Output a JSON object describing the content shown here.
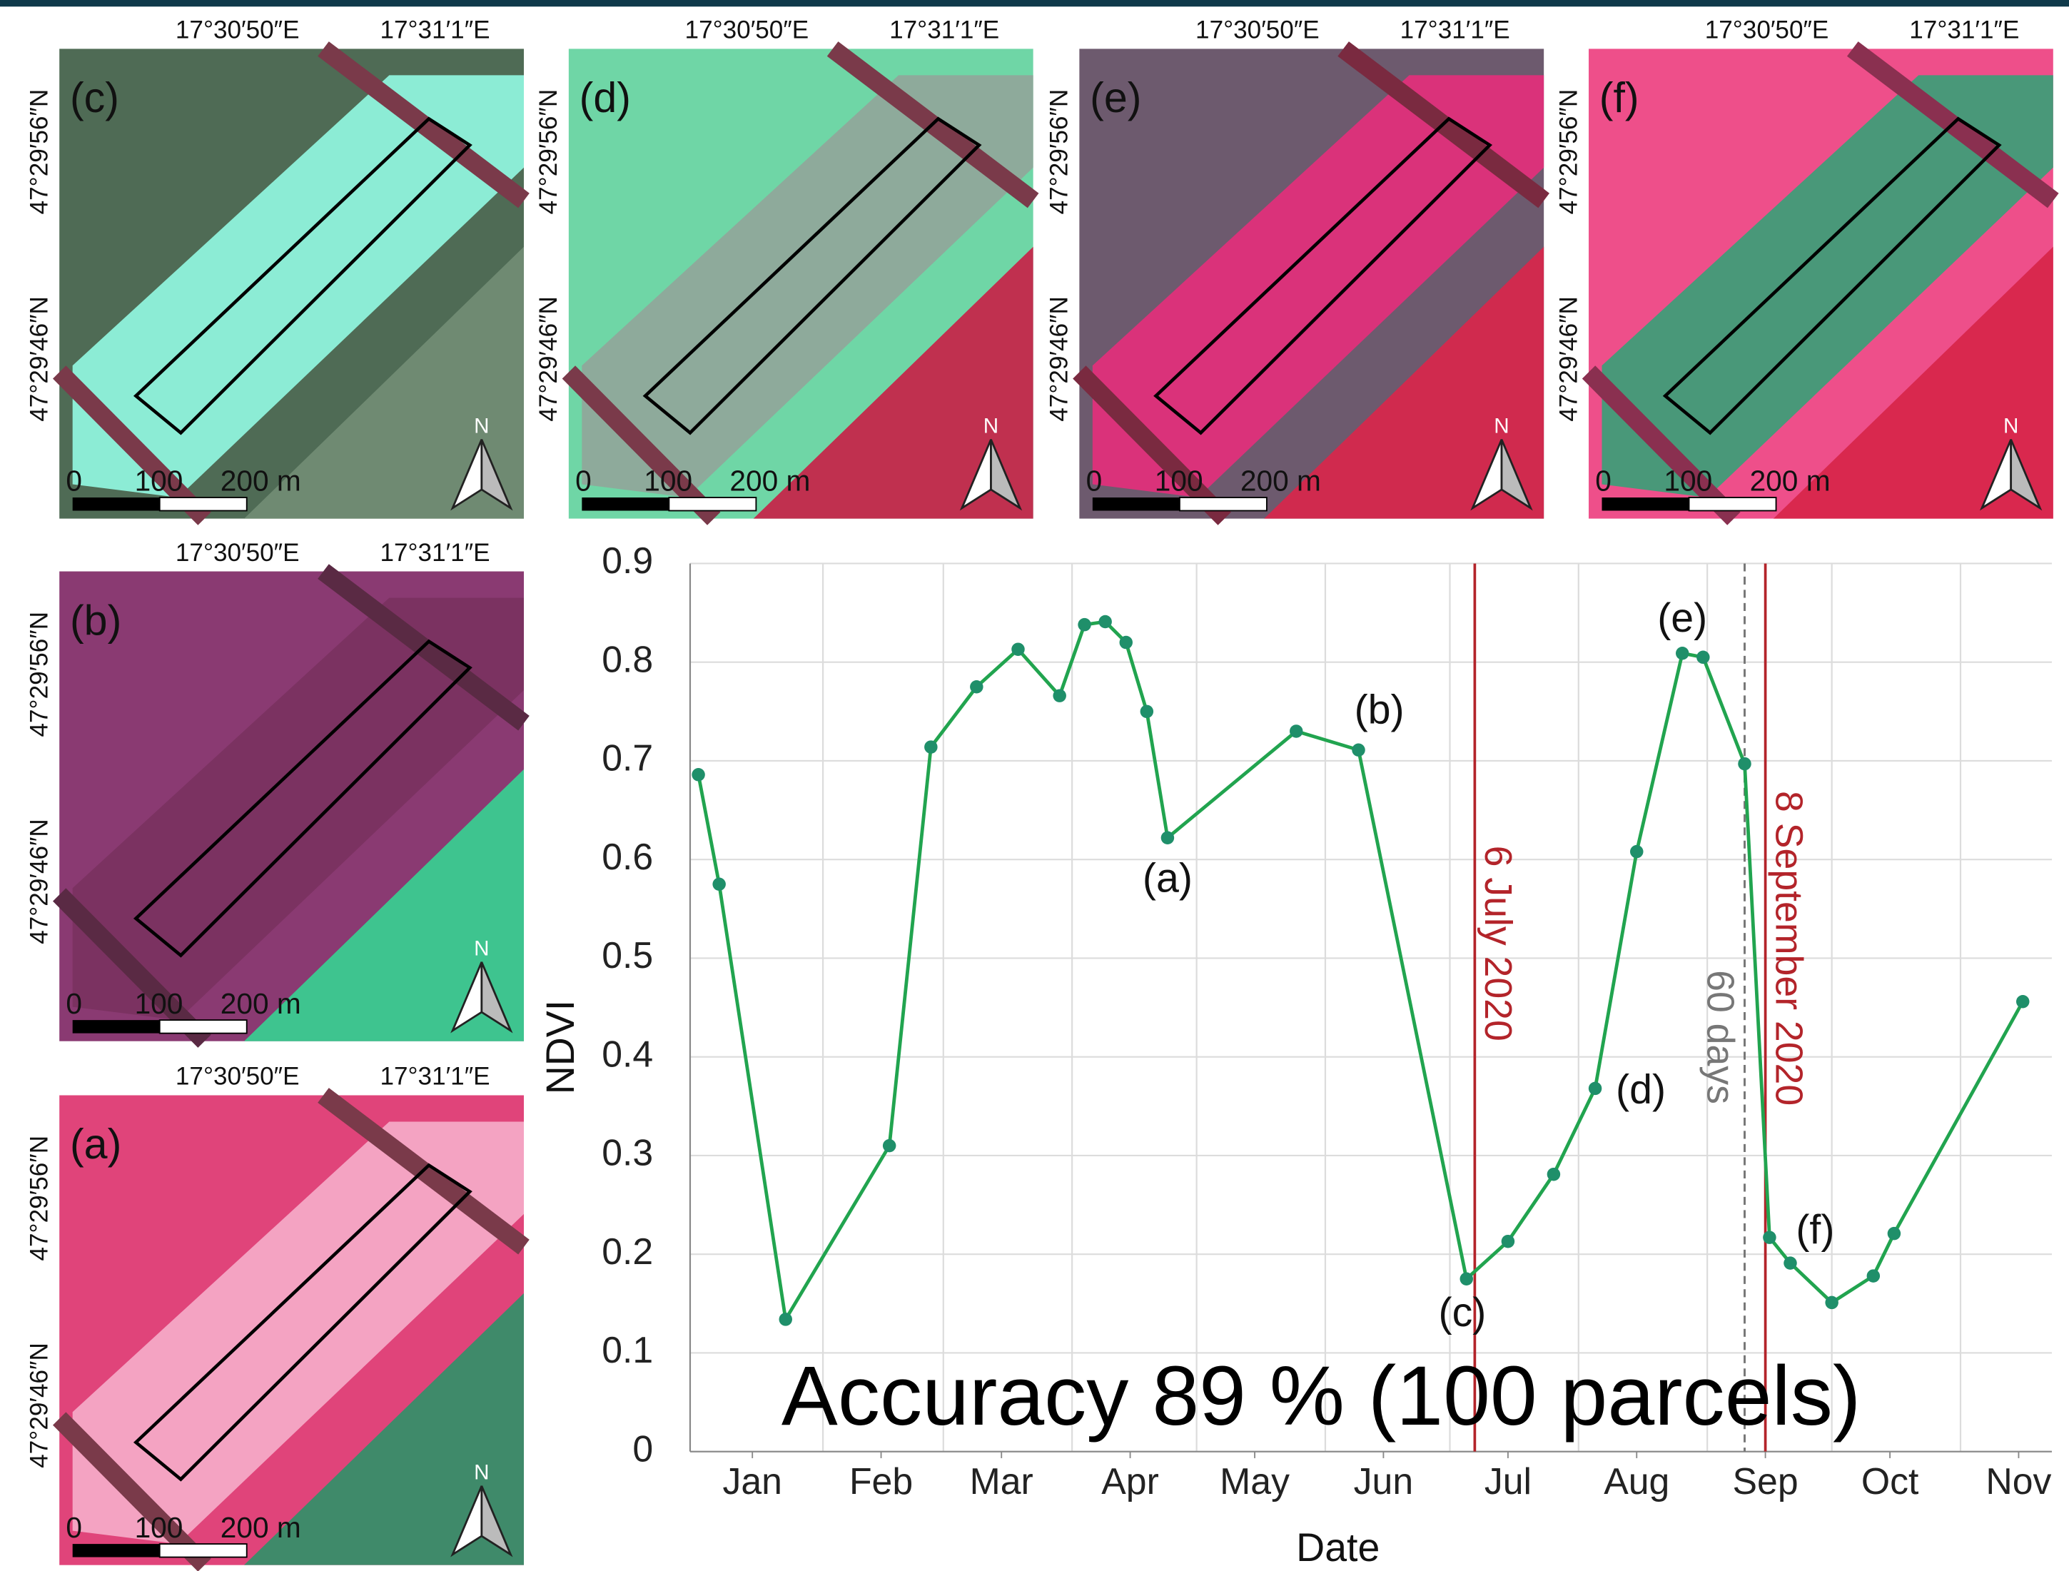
{
  "panels": [
    {
      "label": "(c)",
      "lon_labels": [
        "17°30′50″E",
        "17°31′1″E"
      ],
      "lat_labels": [
        "47°29′56″N",
        "47°29′46″N"
      ],
      "scale_labels": [
        "0",
        "100",
        "200 m"
      ],
      "north": "N"
    },
    {
      "label": "(d)",
      "lon_labels": [
        "17°30′50″E",
        "17°31′1″E"
      ],
      "lat_labels": [
        "47°29′56″N",
        "47°29′46″N"
      ],
      "scale_labels": [
        "0",
        "100",
        "200 m"
      ],
      "north": "N"
    },
    {
      "label": "(e)",
      "lon_labels": [
        "17°30′50″E",
        "17°31′1″E"
      ],
      "lat_labels": [
        "47°29′56″N",
        "47°29′46″N"
      ],
      "scale_labels": [
        "0",
        "100",
        "200 m"
      ],
      "north": "N"
    },
    {
      "label": "(f)",
      "lon_labels": [
        "17°30′50″E",
        "17°31′1″E"
      ],
      "lat_labels": [
        "47°29′56″N",
        "47°29′46″N"
      ],
      "scale_labels": [
        "0",
        "100",
        "200 m"
      ],
      "north": "N"
    },
    {
      "label": "(b)",
      "lon_labels": [
        "17°30′50″E",
        "17°31′1″E"
      ],
      "lat_labels": [
        "47°29′56″N",
        "47°29′46″N"
      ],
      "scale_labels": [
        "0",
        "100",
        "200 m"
      ],
      "north": "N"
    },
    {
      "label": "(a)",
      "lon_labels": [
        "17°30′50″E",
        "17°31′1″E"
      ],
      "lat_labels": [
        "47°29′56″N",
        "47°29′46″N"
      ],
      "scale_labels": [
        "0",
        "100",
        "200 m"
      ],
      "north": "N"
    }
  ],
  "chart_data": {
    "type": "line",
    "x_label": "Date",
    "y_label": "NDVI",
    "x": [
      2,
      7,
      23,
      48,
      58,
      69,
      79,
      89,
      95,
      100,
      105,
      110,
      115,
      146,
      161,
      187,
      197,
      208,
      218,
      228,
      239,
      244,
      254,
      260,
      265,
      275,
      285,
      290,
      321
    ],
    "series": [
      {
        "color": "#21a44f",
        "values": [
          0.686,
          0.575,
          0.134,
          0.31,
          0.714,
          0.775,
          0.813,
          0.766,
          0.838,
          0.841,
          0.82,
          0.75,
          0.622,
          0.73,
          0.711,
          0.175,
          0.213,
          0.281,
          0.368,
          0.608,
          0.809,
          0.805,
          0.697,
          0.217,
          0.191,
          0.151,
          0.178,
          0.221,
          0.456
        ]
      }
    ],
    "xlim": [
      0,
      328
    ],
    "xticks": [
      {
        "value": 15,
        "label": "Jan"
      },
      {
        "value": 46,
        "label": "Feb"
      },
      {
        "value": 75,
        "label": "Mar"
      },
      {
        "value": 106,
        "label": "Apr"
      },
      {
        "value": 136,
        "label": "May"
      },
      {
        "value": 167,
        "label": "Jun"
      },
      {
        "value": 197,
        "label": "Jul"
      },
      {
        "value": 228,
        "label": "Aug"
      },
      {
        "value": 259,
        "label": "Sep"
      },
      {
        "value": 289,
        "label": "Oct"
      },
      {
        "value": 320,
        "label": "Nov"
      }
    ],
    "x_grid": [
      32,
      61,
      92,
      122,
      153,
      183,
      214,
      245,
      275,
      306
    ],
    "ylim": [
      0,
      0.9
    ],
    "yticks": [
      0,
      0.1,
      0.2,
      0.3,
      0.4,
      0.5,
      0.6,
      0.7,
      0.8,
      0.9
    ],
    "grid": true,
    "vlines": [
      {
        "x": 189,
        "text": "6 July 2020",
        "color": "#b3242a",
        "label_y": 0.515
      },
      {
        "x": 259,
        "text": "8 September 2020",
        "color": "#b3242a",
        "label_y": 0.51
      },
      {
        "x": 254,
        "text": "60 days",
        "color": "#777777",
        "dashed": true,
        "label_y": 0.42
      }
    ],
    "annotations": [
      {
        "text": "(a)",
        "x": 115,
        "y": 0.578
      },
      {
        "text": "(b)",
        "x": 166,
        "y": 0.749
      },
      {
        "text": "(c)",
        "x": 186,
        "y": 0.138
      },
      {
        "text": "(d)",
        "x": 229,
        "y": 0.364
      },
      {
        "text": "(e)",
        "x": 239,
        "y": 0.842
      },
      {
        "text": "(f)",
        "x": 271,
        "y": 0.222
      },
      {
        "text": "Accuracy 89 % (100 parcels)",
        "x": 152,
        "y": 0.05,
        "large": true
      }
    ]
  }
}
